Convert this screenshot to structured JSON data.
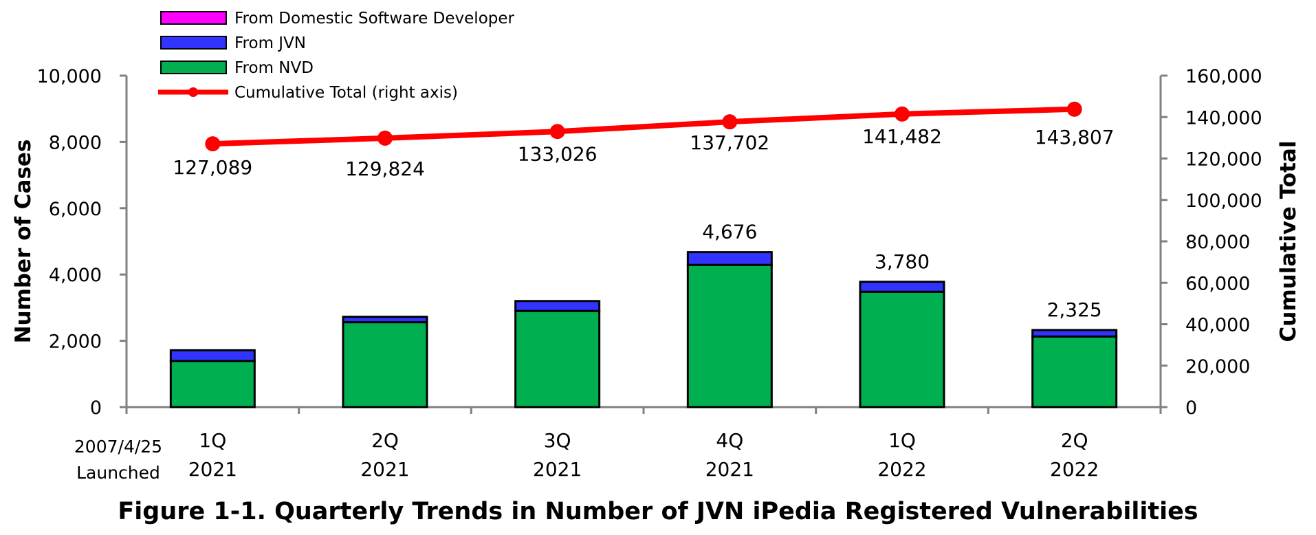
{
  "chart_data": {
    "type": "bar",
    "title": "Figure 1-1. Quarterly Trends in Number of JVN iPedia Registered Vulnerabilities",
    "ylabel": "Number of Cases",
    "y2label": "Cumulative Total",
    "launch_note": [
      "2007/4/25",
      "Launched"
    ],
    "categories": [
      [
        "1Q",
        "2021"
      ],
      [
        "2Q",
        "2021"
      ],
      [
        "3Q",
        "2021"
      ],
      [
        "4Q",
        "2021"
      ],
      [
        "1Q",
        "2022"
      ],
      [
        "2Q",
        "2022"
      ]
    ],
    "ylim": [
      0,
      10000
    ],
    "y2lim": [
      0,
      160000
    ],
    "yticks": [
      "0",
      "2,000",
      "4,000",
      "6,000",
      "8,000",
      "10,000"
    ],
    "y2ticks": [
      "0",
      "20,000",
      "40,000",
      "60,000",
      "80,000",
      "100,000",
      "120,000",
      "140,000",
      "160,000"
    ],
    "legend_position": "top-left",
    "series": [
      {
        "name": "From NVD",
        "kind": "bar",
        "color": "#00b050",
        "values": [
          1390,
          2560,
          2900,
          4290,
          3480,
          2130
        ]
      },
      {
        "name": "From JVN",
        "kind": "bar",
        "color": "#3333ff",
        "values": [
          325,
          165,
          300,
          386,
          300,
          195
        ]
      },
      {
        "name": "From Domestic Software Developer",
        "kind": "bar",
        "color": "#ff00ff",
        "values": [
          0,
          0,
          0,
          0,
          0,
          0
        ]
      },
      {
        "name": "Cumulative Total (right axis)",
        "kind": "line",
        "axis": "right",
        "color": "#ff0000",
        "values": [
          127089,
          129824,
          133026,
          137702,
          141482,
          143807
        ]
      }
    ],
    "bar_totals": [
      null,
      null,
      null,
      4676,
      3780,
      2325
    ],
    "bar_total_labels": [
      "",
      "",
      "",
      "4,676",
      "3,780",
      "2,325"
    ],
    "line_labels": [
      "127,089",
      "129,824",
      "133,026",
      "137,702",
      "141,482",
      "143,807"
    ]
  }
}
